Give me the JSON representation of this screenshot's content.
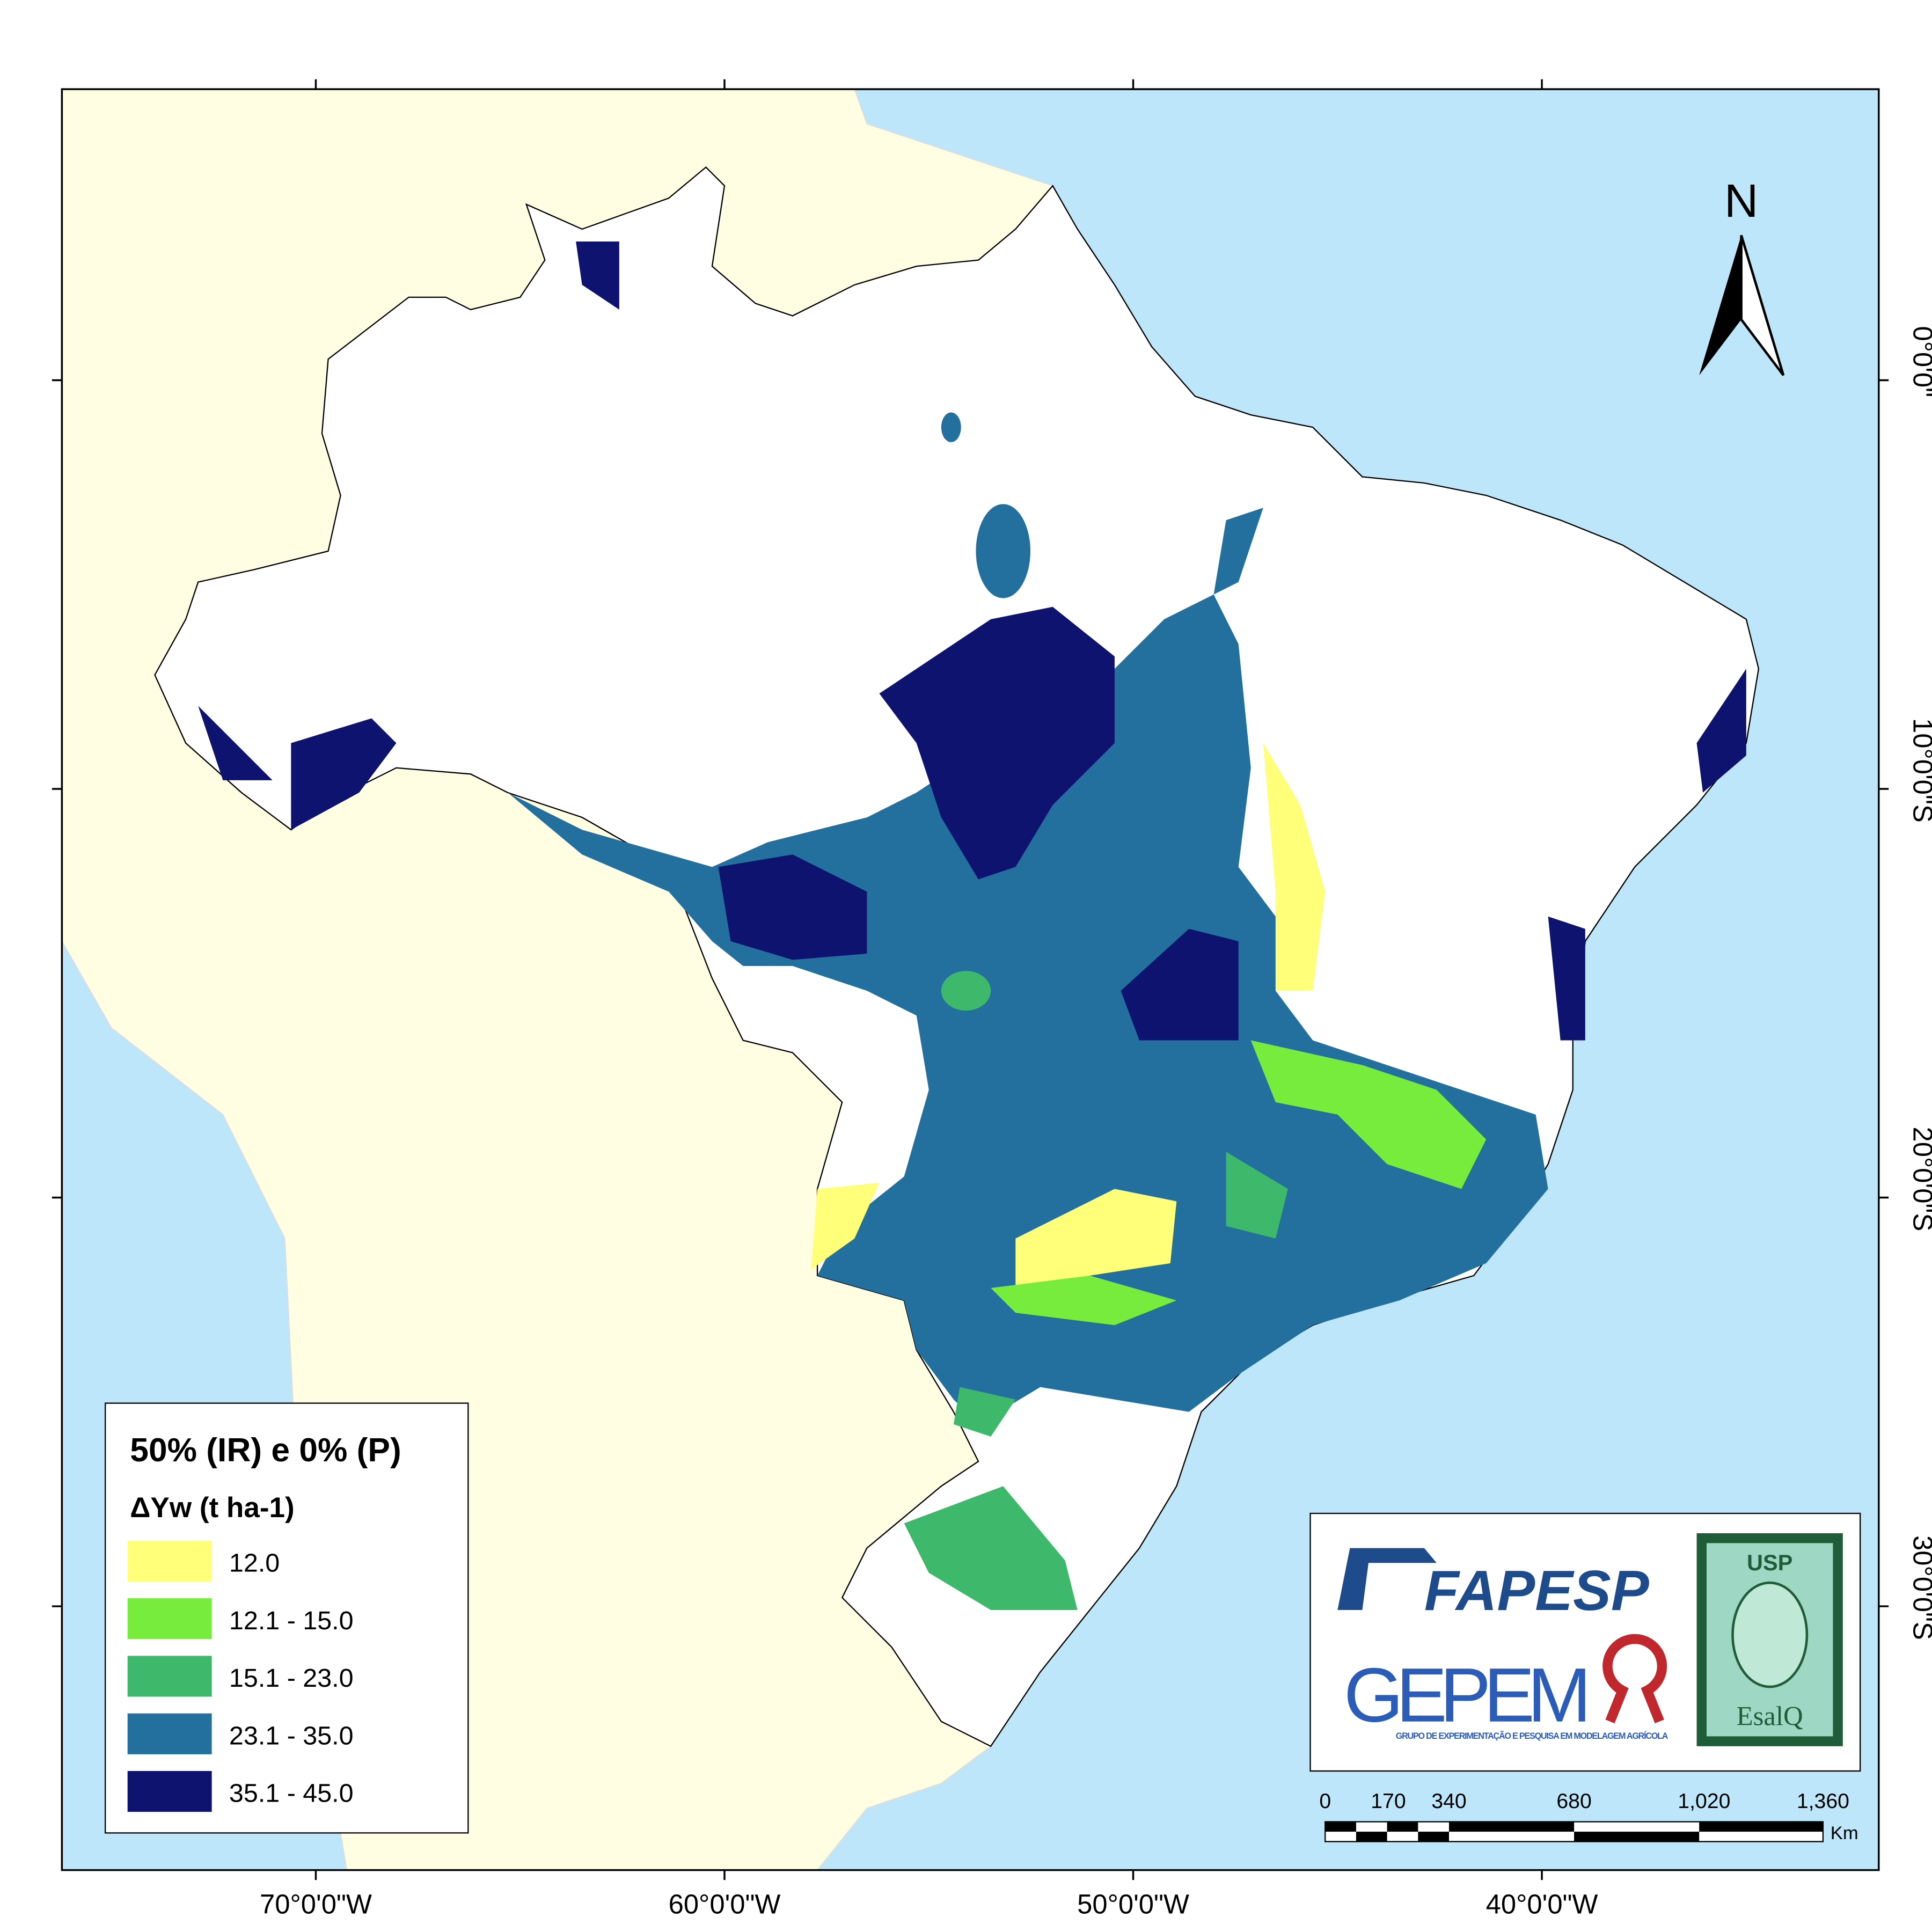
{
  "map": {
    "title": "50% (IR) e 0% (P)",
    "legend_title": "ΔYw (t ha-1)",
    "legend": [
      {
        "label": "12.0",
        "color": "#ffff7a"
      },
      {
        "label": "12.1 - 15.0",
        "color": "#78ec3c"
      },
      {
        "label": "15.1 - 23.0",
        "color": "#3eb86b"
      },
      {
        "label": "23.1 - 35.0",
        "color": "#236f9e"
      },
      {
        "label": "35.1 - 45.0",
        "color": "#0e136f"
      }
    ],
    "north": "N",
    "lon_labels": [
      "70°0'0\"W",
      "60°0'0\"W",
      "50°0'0\"W",
      "40°0'0\"W"
    ],
    "lat_labels": [
      "0°0'0\"",
      "10°0'0\"S",
      "20°0'0\"S",
      "30°0'0\"S"
    ],
    "scale_labels": [
      "0",
      "170",
      "340",
      "680",
      "1,020",
      "1,360"
    ],
    "scale_unit": "Km",
    "logos": {
      "fapesp": "FAPESP",
      "gepem": "GEPEM",
      "gepem_sub": "GRUPO DE EXPERIMENTAÇÃO E PESQUISA EM MODELAGEM AGRÍCOLA",
      "usp": "USP",
      "esalq": "EsalQ"
    }
  }
}
